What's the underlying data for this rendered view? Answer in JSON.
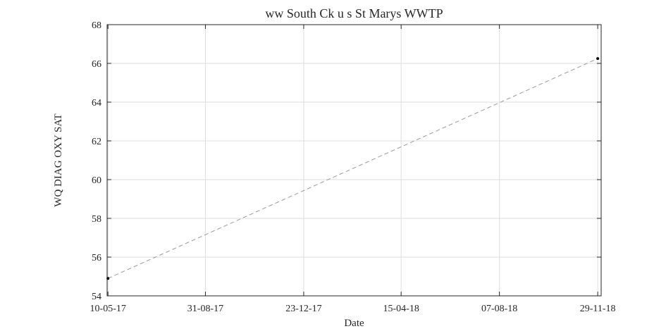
{
  "chart_data": {
    "type": "line",
    "title": "ww South Ck u s St Marys WWTP",
    "xlabel": "Date",
    "ylabel": "WQ DIAG OXY SAT",
    "x_ticks": [
      "10-05-17",
      "31-08-17",
      "23-12-17",
      "15-04-18",
      "07-08-18",
      "29-11-18"
    ],
    "x_tick_dates": [
      "2017-05-10",
      "2017-08-31",
      "2017-12-23",
      "2018-04-15",
      "2018-08-07",
      "2018-11-29"
    ],
    "xlim": [
      "2017-05-09",
      "2018-12-03"
    ],
    "ylim": [
      54,
      68
    ],
    "y_ticks": [
      54,
      56,
      58,
      60,
      62,
      64,
      66,
      68
    ],
    "grid": true,
    "series": [
      {
        "line_style": "dashed",
        "line_color": "#999999",
        "marker_color": "#000000",
        "points": [
          {
            "x": "2017-05-10",
            "y": 54.9
          },
          {
            "x": "2018-11-29",
            "y": 66.25
          }
        ]
      }
    ]
  }
}
